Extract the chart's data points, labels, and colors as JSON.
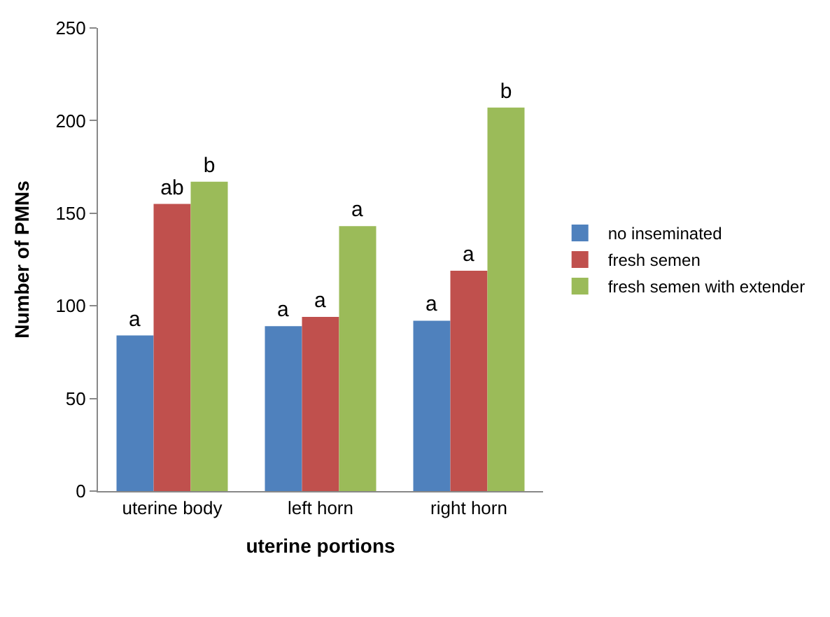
{
  "chart_data": {
    "type": "bar",
    "xlabel": "uterine portions",
    "ylabel": "Number of PMNs",
    "categories": [
      "uterine body",
      "left horn",
      "right horn"
    ],
    "series": [
      {
        "name": "no inseminated",
        "color": "#4f81bd",
        "values": [
          84,
          89,
          92
        ],
        "value_labels": [
          "a",
          "a",
          "a"
        ]
      },
      {
        "name": "fresh semen",
        "color": "#c0504d",
        "values": [
          155,
          94,
          119
        ],
        "value_labels": [
          "ab",
          "a",
          "a"
        ]
      },
      {
        "name": "fresh semen with extender",
        "color": "#9bbb59",
        "values": [
          167,
          143,
          207
        ],
        "value_labels": [
          "b",
          "a",
          "b"
        ]
      }
    ],
    "ylim": [
      0,
      250
    ],
    "yticks": [
      0,
      50,
      100,
      150,
      200,
      250
    ],
    "legend": "right"
  }
}
